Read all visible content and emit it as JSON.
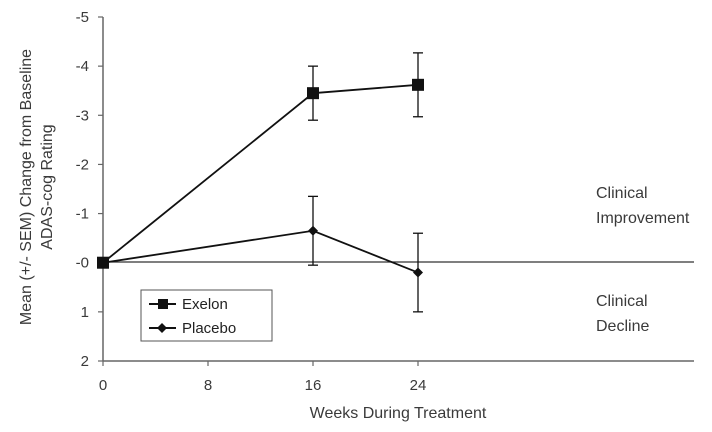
{
  "chart_data": {
    "type": "line",
    "title": "",
    "xlabel": "Weeks During Treatment",
    "ylabel_line1": "Mean (+/- SEM) Change from Baseline",
    "ylabel_line2": "ADAS-cog Rating",
    "x_ticks": [
      "0",
      "8",
      "16",
      "24"
    ],
    "y_ticks": [
      "-5",
      "-4",
      "-3",
      "-2",
      "-1",
      "-0",
      "1",
      "2"
    ],
    "xlim": [
      0,
      32
    ],
    "ylim": [
      2,
      -5
    ],
    "y_axis_inverted": true,
    "grid": false,
    "legend_position": "bottom-left",
    "baseline_y": 0,
    "series": [
      {
        "name": "Exelon",
        "marker": "square",
        "color": "#111111",
        "x": [
          0,
          16,
          24
        ],
        "y": [
          0,
          -3.45,
          -3.62
        ],
        "err": [
          0,
          0.55,
          0.65
        ]
      },
      {
        "name": "Placebo",
        "marker": "diamond",
        "color": "#111111",
        "x": [
          0,
          16,
          24
        ],
        "y": [
          0,
          -0.65,
          0.2
        ],
        "err": [
          0,
          0.7,
          0.8
        ]
      }
    ],
    "annotations": [
      {
        "lines": [
          "Clinical",
          "Improvement"
        ]
      },
      {
        "lines": [
          "Clinical",
          "Decline"
        ]
      }
    ]
  }
}
